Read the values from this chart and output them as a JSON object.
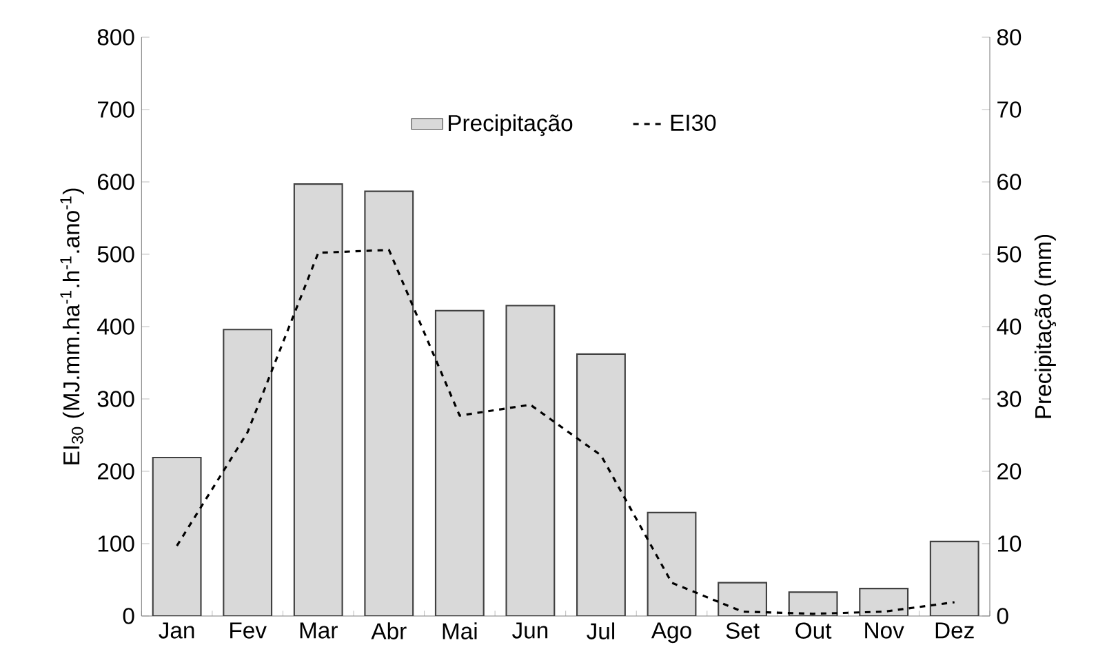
{
  "chart_data": {
    "type": "bar",
    "ylabel": "EI$_{30}$  (MJ.mm.ha$^{-1}$.h$^{-1}$.ano$^{-1}$)",
    "y2label": "Precipitação (mm)",
    "categories": [
      "Jan",
      "Fev",
      "Mar",
      "Abr",
      "Mai",
      "Jun",
      "Jul",
      "Ago",
      "Set",
      "Out",
      "Nov",
      "Dez"
    ],
    "series": [
      {
        "name": "Precipitação",
        "axis": "y2",
        "color": "#d9d9d9",
        "values": [
          21.9,
          39.6,
          59.7,
          58.7,
          42.2,
          42.9,
          36.2,
          14.3,
          4.6,
          3.3,
          3.8,
          10.3
        ]
      },
      {
        "name": "EI30",
        "type": "line",
        "color": "#000000",
        "line_style": "dashed",
        "values": [
          97,
          254,
          502,
          506,
          277,
          292,
          222,
          46,
          6,
          3,
          6,
          19
        ]
      }
    ],
    "ylim": [
      0,
      800
    ],
    "yticks": [
      0,
      100,
      200,
      300,
      400,
      500,
      600,
      700,
      800
    ],
    "y2lim": [
      0,
      80
    ],
    "y2ticks": [
      0,
      10,
      20,
      30,
      40,
      50,
      60,
      70,
      80
    ],
    "legend": "top"
  }
}
